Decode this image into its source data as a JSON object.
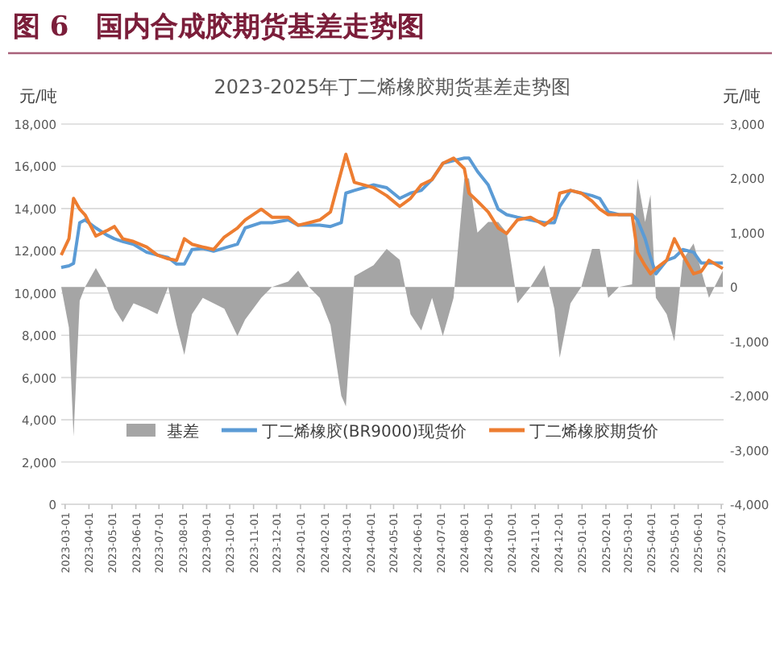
{
  "chart_data": {
    "type": "line",
    "title": "图 6　国内合成胶期货基差走势图",
    "subtitle": "2023-2025年丁二烯橡胶期货基差走势图",
    "ylabel": "元/吨",
    "y2label": "元/吨",
    "x": [
      "2023-02-24",
      "2023-03-06",
      "2023-03-12",
      "2023-03-20",
      "2023-03-27",
      "2023-04-10",
      "2023-04-24",
      "2023-05-04",
      "2023-05-15",
      "2023-05-29",
      "2023-06-15",
      "2023-06-29",
      "2023-07-13",
      "2023-07-24",
      "2023-08-03",
      "2023-08-13",
      "2023-08-27",
      "2023-09-10",
      "2023-09-24",
      "2023-10-11",
      "2023-10-21",
      "2023-11-11",
      "2023-11-25",
      "2023-12-16",
      "2023-12-29",
      "2024-01-12",
      "2024-01-26",
      "2024-02-09",
      "2024-02-23",
      "2024-02-29",
      "2024-03-11",
      "2024-04-05",
      "2024-04-22",
      "2024-05-09",
      "2024-05-23",
      "2024-06-06",
      "2024-06-20",
      "2024-07-04",
      "2024-07-18",
      "2024-08-01",
      "2024-08-07",
      "2024-08-18",
      "2024-09-01",
      "2024-09-14",
      "2024-09-25",
      "2024-10-09",
      "2024-10-26",
      "2024-11-13",
      "2024-11-26",
      "2024-12-03",
      "2024-12-17",
      "2024-12-31",
      "2025-01-14",
      "2025-01-24",
      "2025-02-04",
      "2025-02-18",
      "2025-03-07",
      "2025-03-14",
      "2025-03-24",
      "2025-03-31",
      "2025-04-07",
      "2025-04-21",
      "2025-05-01",
      "2025-05-12",
      "2025-05-26",
      "2025-06-05",
      "2025-06-15",
      "2025-07-03"
    ],
    "series": [
      {
        "name": "基差",
        "type": "area",
        "axis": "y2",
        "color": "#a5a5a5",
        "values": [
          0,
          -750,
          -2750,
          -250,
          0,
          350,
          0,
          -400,
          -650,
          -300,
          -400,
          -500,
          0,
          -700,
          -1250,
          -500,
          -200,
          -300,
          -400,
          -900,
          -600,
          -200,
          0,
          100,
          300,
          0,
          -200,
          -700,
          -2000,
          -2200,
          200,
          400,
          700,
          500,
          -500,
          -800,
          -200,
          -900,
          -200,
          2000,
          2000,
          1000,
          1200,
          1200,
          1000,
          -300,
          0,
          400,
          -400,
          -1300,
          -300,
          0,
          700,
          700,
          -200,
          0,
          50,
          2000,
          1200,
          1700,
          -200,
          -500,
          -1000,
          500,
          800,
          300,
          -200,
          300
        ]
      },
      {
        "name": "丁二烯橡胶(BR9000)现货价",
        "color": "#5b9bd5",
        "values": [
          11210,
          11290,
          11400,
          13330,
          13460,
          13080,
          12750,
          12570,
          12440,
          12310,
          11930,
          11800,
          11680,
          11370,
          11370,
          12060,
          12110,
          11980,
          12130,
          12310,
          13080,
          13330,
          13330,
          13460,
          13210,
          13210,
          13210,
          13150,
          13330,
          14730,
          14860,
          15120,
          14990,
          14480,
          14730,
          14860,
          15370,
          16140,
          16270,
          16390,
          16390,
          15760,
          15120,
          13970,
          13710,
          13590,
          13460,
          13330,
          13330,
          14100,
          14860,
          14730,
          14610,
          14480,
          13840,
          13710,
          13710,
          13460,
          12570,
          11680,
          10910,
          11550,
          11680,
          12060,
          11930,
          11420,
          11420,
          11420
        ]
      },
      {
        "name": "丁二烯橡胶期货价",
        "color": "#ed7d31",
        "values": [
          11800,
          12570,
          14480,
          13970,
          13700,
          12700,
          12950,
          13150,
          12570,
          12440,
          12180,
          11800,
          11620,
          11550,
          12570,
          12310,
          12180,
          12060,
          12650,
          13080,
          13460,
          13970,
          13590,
          13590,
          13210,
          13330,
          13460,
          13840,
          15760,
          16570,
          15240,
          14990,
          14610,
          14100,
          14480,
          15120,
          15370,
          16140,
          16390,
          15890,
          14730,
          14350,
          13840,
          13080,
          12820,
          13460,
          13590,
          13210,
          13590,
          14730,
          14860,
          14730,
          14350,
          13970,
          13710,
          13710,
          13710,
          11930,
          11290,
          10910,
          11160,
          11550,
          12570,
          11800,
          10910,
          11030,
          11550,
          11160
        ]
      }
    ],
    "xlim": [
      "2023-02-24",
      "2025-07-04"
    ],
    "xticks": [
      "2023-03-01",
      "2023-04-01",
      "2023-05-01",
      "2023-06-01",
      "2023-07-01",
      "2023-08-01",
      "2023-09-01",
      "2023-10-01",
      "2023-11-01",
      "2023-12-01",
      "2024-01-01",
      "2024-02-01",
      "2024-03-01",
      "2024-04-01",
      "2024-05-01",
      "2024-06-01",
      "2024-07-01",
      "2024-08-01",
      "2024-09-01",
      "2024-10-01",
      "2024-11-01",
      "2024-12-01",
      "2025-01-01",
      "2025-02-01",
      "2025-03-01",
      "2025-04-01",
      "2025-05-01",
      "2025-06-01",
      "2025-07-01"
    ],
    "ylim": [
      0,
      18000
    ],
    "yticks": [
      0,
      {
        "value": 2000,
        "label": "2,000"
      },
      {
        "value": 4000,
        "label": "4,000"
      },
      {
        "value": 6000,
        "label": "6,000"
      },
      {
        "value": 8000,
        "label": "8,000"
      },
      {
        "value": 10000,
        "label": "10,000"
      },
      {
        "value": 12000,
        "label": "12,000"
      },
      {
        "value": 14000,
        "label": "14,000"
      },
      {
        "value": 16000,
        "label": "16,000"
      },
      {
        "value": 18000,
        "label": "18,000"
      }
    ],
    "y2lim": [
      -4000,
      3000
    ],
    "y2ticks": [
      {
        "value": -4000,
        "label": "-4,000"
      },
      {
        "value": -3000,
        "label": "-3,000"
      },
      {
        "value": -2000,
        "label": "-2,000"
      },
      {
        "value": -1000,
        "label": "-1,000"
      },
      0,
      {
        "value": 1000,
        "label": "1,000"
      },
      {
        "value": 2000,
        "label": "2,000"
      },
      {
        "value": 3000,
        "label": "3,000"
      }
    ],
    "grid": "y",
    "legend": "bottom",
    "marker": "none",
    "line_style": "solid"
  }
}
